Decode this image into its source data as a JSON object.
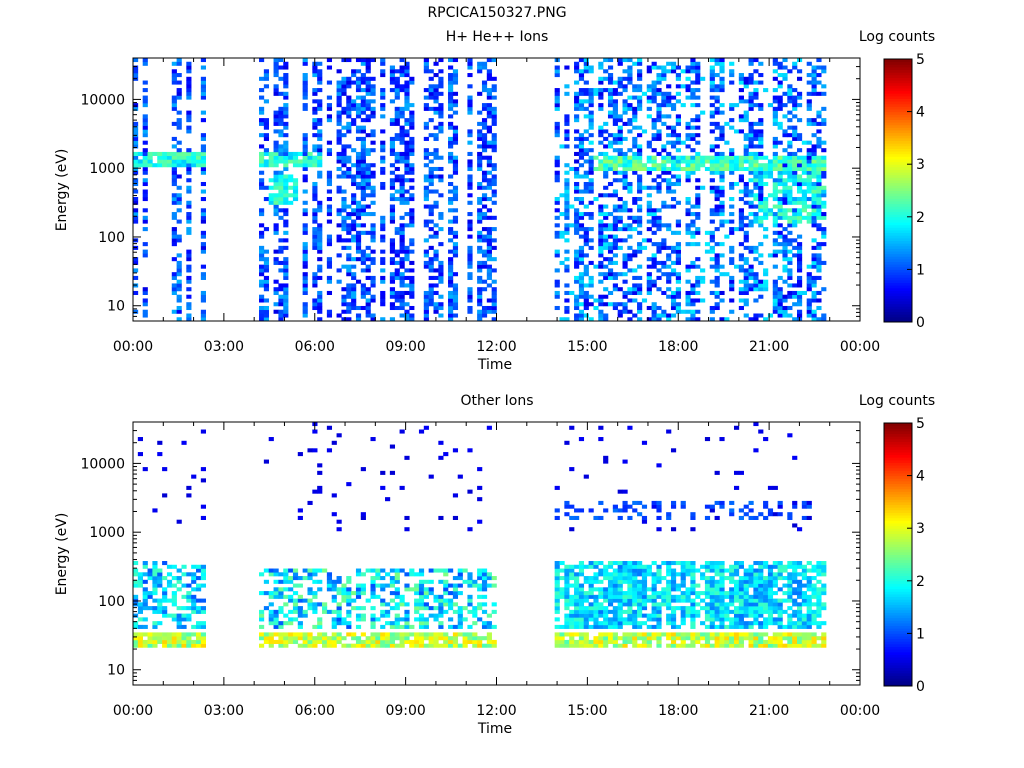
{
  "figure": {
    "filename": "RPCICA150327.PNG",
    "colorbar_label": "Log counts"
  },
  "chart_data": [
    {
      "type": "heatmap",
      "title": "H+ He++ Ions",
      "xlabel": "Time",
      "ylabel": "Energy (eV)",
      "x_ticks": [
        "00:00",
        "03:00",
        "06:00",
        "09:00",
        "12:00",
        "15:00",
        "18:00",
        "21:00",
        "00:00"
      ],
      "xlim_hours": [
        0,
        24
      ],
      "y_scale": "log",
      "ylim": [
        6,
        40000
      ],
      "y_ticks": [
        10,
        100,
        1000,
        10000
      ],
      "y_tick_labels": [
        "10",
        "100",
        "1000",
        "10000"
      ],
      "colorbar": {
        "label": "Log counts",
        "range": [
          0,
          5
        ],
        "ticks": [
          "0",
          "1",
          "2",
          "3",
          "4",
          "5"
        ]
      },
      "data_intervals_hours": [
        [
          0.0,
          2.35
        ],
        [
          4.2,
          11.95
        ],
        [
          14.0,
          22.9
        ]
      ],
      "features": [
        {
          "time_range_hours": [
            0.0,
            2.35
          ],
          "energy_range_eV": [
            6,
            40000
          ],
          "log_counts": [
            0.5,
            1.5
          ],
          "pattern": "vertical streaks"
        },
        {
          "time_range_hours": [
            0.0,
            2.35
          ],
          "energy_eV": 1300,
          "log_counts": 2.0,
          "pattern": "weak band"
        },
        {
          "time_range_hours": [
            4.2,
            6.3
          ],
          "energy_eV": 1300,
          "log_counts": 2.0,
          "pattern": "band"
        },
        {
          "time_range_hours": [
            4.5,
            5.5
          ],
          "energy_range_eV": [
            300,
            800
          ],
          "log_counts": 2.0,
          "pattern": "patch"
        },
        {
          "time_range_hours": [
            4.2,
            11.95
          ],
          "energy_range_eV": [
            6,
            40000
          ],
          "log_counts": [
            0.5,
            1.5
          ],
          "pattern": "vertical streaks"
        },
        {
          "time_range_hours": [
            14.0,
            22.9
          ],
          "energy_range_eV": [
            6,
            40000
          ],
          "log_counts": [
            0.5,
            1.8
          ],
          "pattern": "dense speckle"
        },
        {
          "time_range_hours": [
            15.2,
            22.9
          ],
          "energy_eV": 1200,
          "log_counts": 2.2,
          "pattern": "band"
        },
        {
          "time_range_hours": [
            20.5,
            22.9
          ],
          "energy_range_eV": [
            150,
            1000
          ],
          "log_counts": 2.0,
          "pattern": "streaks"
        }
      ]
    },
    {
      "type": "heatmap",
      "title": "Other Ions",
      "xlabel": "Time",
      "ylabel": "Energy (eV)",
      "x_ticks": [
        "00:00",
        "03:00",
        "06:00",
        "09:00",
        "12:00",
        "15:00",
        "18:00",
        "21:00",
        "00:00"
      ],
      "xlim_hours": [
        0,
        24
      ],
      "y_scale": "log",
      "ylim": [
        6,
        40000
      ],
      "y_ticks": [
        10,
        100,
        1000,
        10000
      ],
      "y_tick_labels": [
        "10",
        "100",
        "1000",
        "10000"
      ],
      "colorbar": {
        "label": "Log counts",
        "range": [
          0,
          5
        ],
        "ticks": [
          "0",
          "1",
          "2",
          "3",
          "4",
          "5"
        ]
      },
      "data_intervals_hours": [
        [
          0.0,
          2.35
        ],
        [
          4.2,
          11.95
        ],
        [
          14.0,
          22.9
        ]
      ],
      "features": [
        {
          "time_range_hours": [
            0.0,
            22.9
          ],
          "energy_range_eV": [
            22,
            33
          ],
          "log_counts": 2.8,
          "pattern": "band"
        },
        {
          "time_range_hours": [
            0.0,
            2.35
          ],
          "energy_range_eV": [
            40,
            400
          ],
          "log_counts": [
            1.0,
            2.2
          ],
          "pattern": "vertical streaks"
        },
        {
          "time_range_hours": [
            4.2,
            11.95
          ],
          "energy_range_eV": [
            40,
            300
          ],
          "log_counts": [
            1.0,
            2.5
          ],
          "pattern": "vertical streaks"
        },
        {
          "time_range_hours": [
            14.0,
            22.9
          ],
          "energy_range_eV": [
            40,
            400
          ],
          "log_counts": [
            1.2,
            2.2
          ],
          "pattern": "dense"
        },
        {
          "time_range_hours": [
            14.0,
            22.9
          ],
          "energy_range_eV": [
            1500,
            3000
          ],
          "log_counts": 1.0,
          "pattern": "speckle"
        },
        {
          "time_range_hours": [
            0.0,
            22.9
          ],
          "energy_range_eV": [
            1000,
            40000
          ],
          "log_counts": 0.5,
          "pattern": "sparse dots"
        }
      ]
    }
  ]
}
